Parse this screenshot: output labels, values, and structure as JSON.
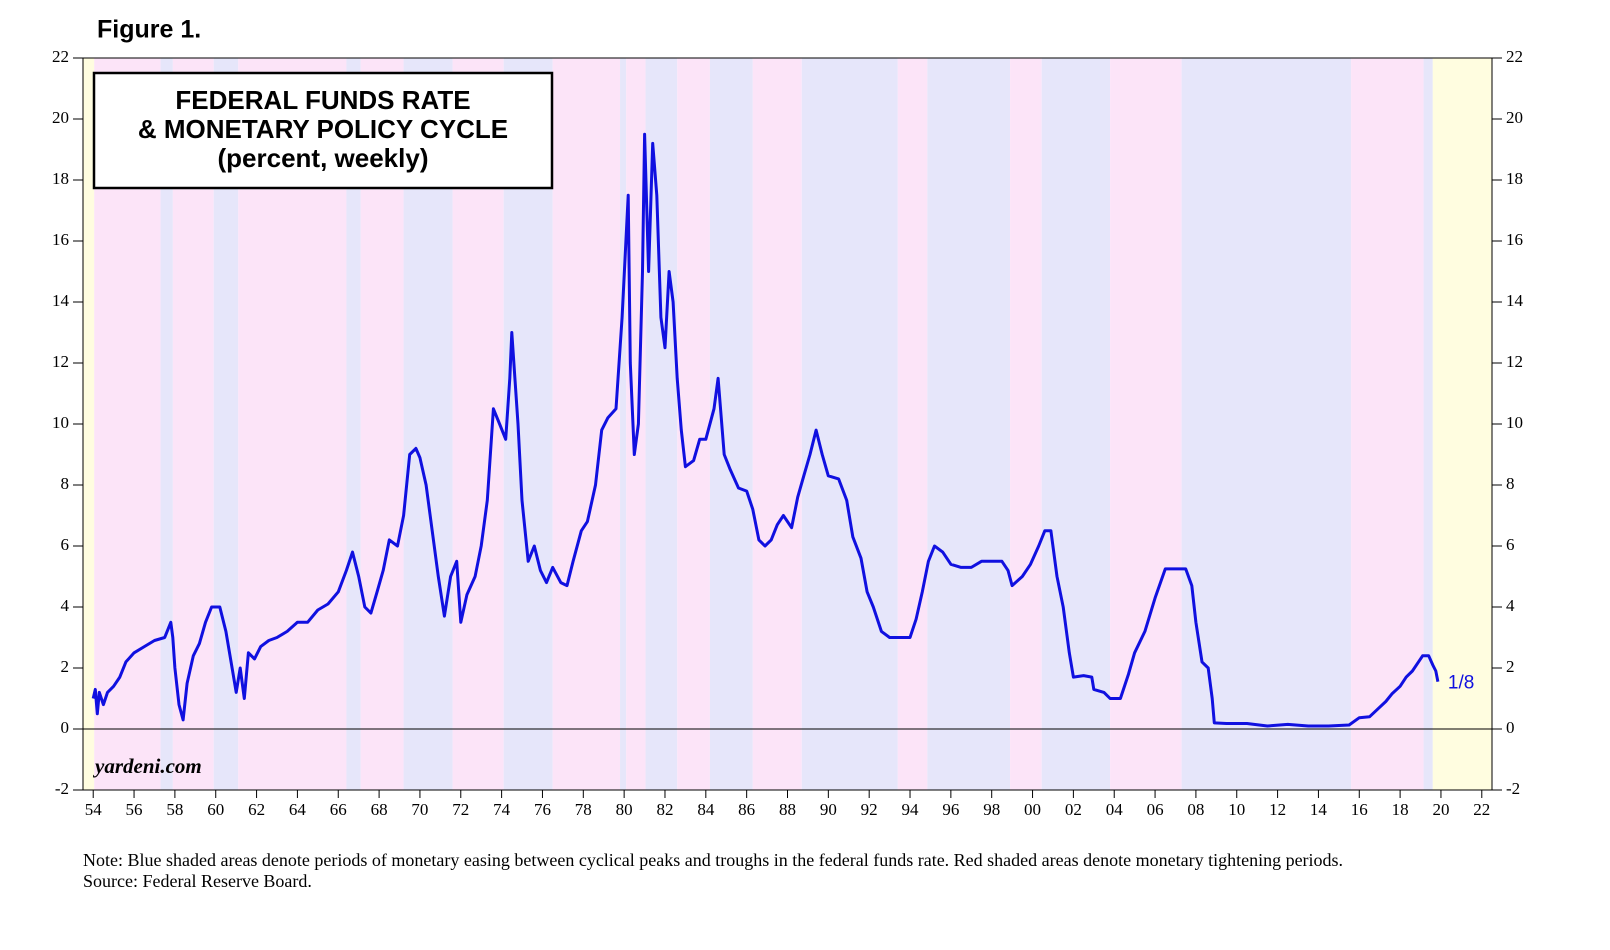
{
  "chart_data": {
    "type": "line",
    "figure_label": "Figure 1.",
    "title": [
      "FEDERAL FUNDS RATE",
      "& MONETARY POLICY CYCLE"
    ],
    "subtitle": "(percent, weekly)",
    "watermark": "yardeni.com",
    "annotation": "1/8",
    "note": "Note: Blue shaded areas denote periods of monetary easing between cyclical peaks and troughs in the federal funds rate. Red shaded areas denote monetary tightening periods.",
    "source": "Source: Federal Reserve Board.",
    "xlim": [
      1953.5,
      2022.5
    ],
    "ylim": [
      -2,
      22
    ],
    "yticks": [
      -2,
      0,
      2,
      4,
      6,
      8,
      10,
      12,
      14,
      16,
      18,
      20,
      22
    ],
    "xticks": [
      {
        "value": 1954,
        "label": "54"
      },
      {
        "value": 1956,
        "label": "56"
      },
      {
        "value": 1958,
        "label": "58"
      },
      {
        "value": 1960,
        "label": "60"
      },
      {
        "value": 1962,
        "label": "62"
      },
      {
        "value": 1964,
        "label": "64"
      },
      {
        "value": 1966,
        "label": "66"
      },
      {
        "value": 1968,
        "label": "68"
      },
      {
        "value": 1970,
        "label": "70"
      },
      {
        "value": 1972,
        "label": "72"
      },
      {
        "value": 1974,
        "label": "74"
      },
      {
        "value": 1976,
        "label": "76"
      },
      {
        "value": 1978,
        "label": "78"
      },
      {
        "value": 1980,
        "label": "80"
      },
      {
        "value": 1982,
        "label": "82"
      },
      {
        "value": 1984,
        "label": "84"
      },
      {
        "value": 1986,
        "label": "86"
      },
      {
        "value": 1988,
        "label": "88"
      },
      {
        "value": 1990,
        "label": "90"
      },
      {
        "value": 1992,
        "label": "92"
      },
      {
        "value": 1994,
        "label": "94"
      },
      {
        "value": 1996,
        "label": "96"
      },
      {
        "value": 1998,
        "label": "98"
      },
      {
        "value": 2000,
        "label": "00"
      },
      {
        "value": 2002,
        "label": "02"
      },
      {
        "value": 2004,
        "label": "04"
      },
      {
        "value": 2006,
        "label": "06"
      },
      {
        "value": 2008,
        "label": "08"
      },
      {
        "value": 2010,
        "label": "10"
      },
      {
        "value": 2012,
        "label": "12"
      },
      {
        "value": 2014,
        "label": "14"
      },
      {
        "value": 2016,
        "label": "16"
      },
      {
        "value": 2018,
        "label": "18"
      },
      {
        "value": 2020,
        "label": "20"
      },
      {
        "value": 2022,
        "label": "22"
      }
    ],
    "shading": [
      {
        "x": [
          1953.5,
          1954.05
        ],
        "color": "#fffde0"
      },
      {
        "x": [
          1954.05,
          1957.3
        ],
        "color": "#fce4f8"
      },
      {
        "x": [
          1957.3,
          1957.9
        ],
        "color": "#e6e6fa"
      },
      {
        "x": [
          1957.9,
          1959.9
        ],
        "color": "#fce4f8"
      },
      {
        "x": [
          1959.9,
          1961.1
        ],
        "color": "#e6e6fa"
      },
      {
        "x": [
          1961.1,
          1966.4
        ],
        "color": "#fce4f8"
      },
      {
        "x": [
          1966.4,
          1967.1
        ],
        "color": "#e6e6fa"
      },
      {
        "x": [
          1967.1,
          1969.2
        ],
        "color": "#fce4f8"
      },
      {
        "x": [
          1969.2,
          1971.6
        ],
        "color": "#e6e6fa"
      },
      {
        "x": [
          1971.6,
          1974.1
        ],
        "color": "#fce4f8"
      },
      {
        "x": [
          1974.1,
          1976.5
        ],
        "color": "#e6e6fa"
      },
      {
        "x": [
          1976.5,
          1979.8
        ],
        "color": "#fce4f8"
      },
      {
        "x": [
          1979.8,
          1980.1
        ],
        "color": "#e6e6fa"
      },
      {
        "x": [
          1980.1,
          1981.05
        ],
        "color": "#fce4f8"
      },
      {
        "x": [
          1981.05,
          1982.6
        ],
        "color": "#e6e6fa"
      },
      {
        "x": [
          1982.6,
          1984.2
        ],
        "color": "#fce4f8"
      },
      {
        "x": [
          1984.2,
          1986.3
        ],
        "color": "#e6e6fa"
      },
      {
        "x": [
          1986.3,
          1988.7
        ],
        "color": "#fce4f8"
      },
      {
        "x": [
          1988.7,
          1993.4
        ],
        "color": "#e6e6fa"
      },
      {
        "x": [
          1993.4,
          1994.85
        ],
        "color": "#fce4f8"
      },
      {
        "x": [
          1994.85,
          1998.9
        ],
        "color": "#e6e6fa"
      },
      {
        "x": [
          1998.9,
          2000.45
        ],
        "color": "#fce4f8"
      },
      {
        "x": [
          2000.45,
          2003.8
        ],
        "color": "#e6e6fa"
      },
      {
        "x": [
          2003.8,
          2007.3
        ],
        "color": "#fce4f8"
      },
      {
        "x": [
          2007.3,
          2015.6
        ],
        "color": "#e6e6fa"
      },
      {
        "x": [
          2015.6,
          2019.15
        ],
        "color": "#fce4f8"
      },
      {
        "x": [
          2019.15,
          2019.6
        ],
        "color": "#e6e6fa"
      },
      {
        "x": [
          2019.6,
          2022.5
        ],
        "color": "#fffde0"
      }
    ],
    "x": [
      1954.0,
      1954.1,
      1954.2,
      1954.3,
      1954.5,
      1954.7,
      1955.0,
      1955.3,
      1955.6,
      1956.0,
      1956.5,
      1957.0,
      1957.5,
      1957.8,
      1957.9,
      1958.0,
      1958.2,
      1958.4,
      1958.6,
      1958.9,
      1959.2,
      1959.5,
      1959.8,
      1960.2,
      1960.5,
      1960.8,
      1961.0,
      1961.2,
      1961.4,
      1961.6,
      1961.9,
      1962.2,
      1962.6,
      1963.0,
      1963.5,
      1964.0,
      1964.5,
      1965.0,
      1965.5,
      1966.0,
      1966.4,
      1966.7,
      1967.0,
      1967.3,
      1967.6,
      1967.9,
      1968.2,
      1968.5,
      1968.9,
      1969.2,
      1969.5,
      1969.8,
      1970.0,
      1970.3,
      1970.6,
      1970.9,
      1971.2,
      1971.5,
      1971.8,
      1972.0,
      1972.3,
      1972.7,
      1973.0,
      1973.3,
      1973.6,
      1973.9,
      1974.2,
      1974.4,
      1974.5,
      1974.8,
      1975.0,
      1975.3,
      1975.6,
      1975.9,
      1976.2,
      1976.5,
      1976.9,
      1977.2,
      1977.5,
      1977.9,
      1978.2,
      1978.6,
      1978.9,
      1979.2,
      1979.6,
      1979.9,
      1980.2,
      1980.3,
      1980.5,
      1980.7,
      1980.9,
      1981.0,
      1981.2,
      1981.4,
      1981.6,
      1981.8,
      1982.0,
      1982.2,
      1982.4,
      1982.6,
      1982.8,
      1983.0,
      1983.4,
      1983.7,
      1984.0,
      1984.4,
      1984.6,
      1984.9,
      1985.2,
      1985.6,
      1986.0,
      1986.3,
      1986.6,
      1986.9,
      1987.2,
      1987.5,
      1987.8,
      1988.2,
      1988.5,
      1988.8,
      1989.1,
      1989.4,
      1989.7,
      1990.0,
      1990.5,
      1990.9,
      1991.2,
      1991.6,
      1991.9,
      1992.2,
      1992.6,
      1993.0,
      1993.5,
      1994.0,
      1994.3,
      1994.6,
      1994.9,
      1995.2,
      1995.6,
      1996.0,
      1996.5,
      1997.0,
      1997.5,
      1998.0,
      1998.5,
      1998.8,
      1999.0,
      1999.5,
      1999.9,
      2000.3,
      2000.6,
      2000.9,
      2001.2,
      2001.5,
      2001.8,
      2002.0,
      2002.5,
      2002.9,
      2003.0,
      2003.5,
      2003.8,
      2004.3,
      2004.7,
      2005.0,
      2005.5,
      2006.0,
      2006.5,
      2007.0,
      2007.5,
      2007.8,
      2008.0,
      2008.3,
      2008.6,
      2008.8,
      2008.9,
      2009.5,
      2010.5,
      2011.5,
      2012.5,
      2013.5,
      2014.5,
      2015.5,
      2016.0,
      2016.5,
      2016.9,
      2017.3,
      2017.6,
      2018.0,
      2018.3,
      2018.6,
      2018.9,
      2019.1,
      2019.4,
      2019.6,
      2019.75,
      2019.85
    ],
    "series": [
      {
        "color": "#1010e0",
        "values": [
          1.0,
          1.3,
          0.5,
          1.2,
          0.8,
          1.2,
          1.4,
          1.7,
          2.2,
          2.5,
          2.7,
          2.9,
          3.0,
          3.5,
          3.0,
          2.0,
          0.8,
          0.3,
          1.5,
          2.4,
          2.8,
          3.5,
          4.0,
          4.0,
          3.2,
          2.0,
          1.2,
          2.0,
          1.0,
          2.5,
          2.3,
          2.7,
          2.9,
          3.0,
          3.2,
          3.5,
          3.5,
          3.9,
          4.1,
          4.5,
          5.2,
          5.8,
          5.0,
          4.0,
          3.8,
          4.5,
          5.2,
          6.2,
          6.0,
          7.0,
          9.0,
          9.2,
          8.9,
          8.0,
          6.5,
          5.0,
          3.7,
          5.0,
          5.5,
          3.5,
          4.4,
          5.0,
          6.0,
          7.5,
          10.5,
          10.0,
          9.5,
          11.5,
          13.0,
          10.0,
          7.5,
          5.5,
          6.0,
          5.2,
          4.8,
          5.3,
          4.8,
          4.7,
          5.5,
          6.5,
          6.8,
          8.0,
          9.8,
          10.2,
          10.5,
          13.5,
          17.5,
          12.0,
          9.0,
          10.0,
          15.0,
          19.5,
          15.0,
          19.2,
          17.5,
          13.5,
          12.5,
          15.0,
          14.0,
          11.5,
          9.8,
          8.6,
          8.8,
          9.5,
          9.5,
          10.5,
          11.5,
          9.0,
          8.5,
          7.9,
          7.8,
          7.2,
          6.2,
          6.0,
          6.2,
          6.7,
          7.0,
          6.6,
          7.6,
          8.3,
          9.0,
          9.8,
          9.0,
          8.3,
          8.2,
          7.5,
          6.3,
          5.6,
          4.5,
          4.0,
          3.2,
          3.0,
          3.0,
          3.0,
          3.6,
          4.5,
          5.5,
          6.0,
          5.8,
          5.4,
          5.3,
          5.3,
          5.5,
          5.5,
          5.5,
          5.2,
          4.7,
          5.0,
          5.4,
          6.0,
          6.5,
          6.5,
          5.0,
          4.0,
          2.5,
          1.7,
          1.75,
          1.7,
          1.3,
          1.2,
          1.0,
          1.0,
          1.8,
          2.5,
          3.2,
          4.3,
          5.25,
          5.25,
          5.25,
          4.7,
          3.5,
          2.2,
          2.0,
          1.0,
          0.2,
          0.18,
          0.18,
          0.1,
          0.15,
          0.1,
          0.1,
          0.13,
          0.37,
          0.4,
          0.65,
          0.9,
          1.15,
          1.4,
          1.7,
          1.9,
          2.2,
          2.4,
          2.4,
          2.1,
          1.9,
          1.55
        ]
      }
    ]
  }
}
